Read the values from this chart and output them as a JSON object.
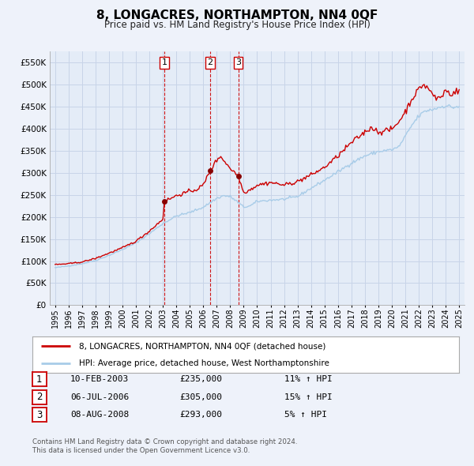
{
  "title": "8, LONGACRES, NORTHAMPTON, NN4 0QF",
  "subtitle": "Price paid vs. HM Land Registry's House Price Index (HPI)",
  "legend_line1": "8, LONGACRES, NORTHAMPTON, NN4 0QF (detached house)",
  "legend_line2": "HPI: Average price, detached house, West Northamptonshire",
  "transactions": [
    {
      "num": 1,
      "date": "10-FEB-2003",
      "date_val": 2003.11,
      "price": 235000,
      "pct": "11%",
      "dir": "↑"
    },
    {
      "num": 2,
      "date": "06-JUL-2006",
      "date_val": 2006.51,
      "price": 305000,
      "pct": "15%",
      "dir": "↑"
    },
    {
      "num": 3,
      "date": "08-AUG-2008",
      "date_val": 2008.6,
      "price": 293000,
      "pct": "5%",
      "dir": "↑"
    }
  ],
  "footer_line1": "Contains HM Land Registry data © Crown copyright and database right 2024.",
  "footer_line2": "This data is licensed under the Open Government Licence v3.0.",
  "hpi_color": "#a8cce8",
  "price_color": "#cc0000",
  "marker_color": "#880000",
  "vline_color": "#cc0000",
  "grid_color": "#c8d4e8",
  "bg_color": "#eef2fa",
  "plot_bg": "#e4ecf7",
  "ylim": [
    0,
    575000
  ],
  "yticks": [
    0,
    50000,
    100000,
    150000,
    200000,
    250000,
    300000,
    350000,
    400000,
    450000,
    500000,
    550000
  ],
  "xlim_start": 1994.6,
  "xlim_end": 2025.4,
  "xticks": [
    1995,
    1996,
    1997,
    1998,
    1999,
    2000,
    2001,
    2002,
    2003,
    2004,
    2005,
    2006,
    2007,
    2008,
    2009,
    2010,
    2011,
    2012,
    2013,
    2014,
    2015,
    2016,
    2017,
    2018,
    2019,
    2020,
    2021,
    2022,
    2023,
    2024,
    2025
  ]
}
